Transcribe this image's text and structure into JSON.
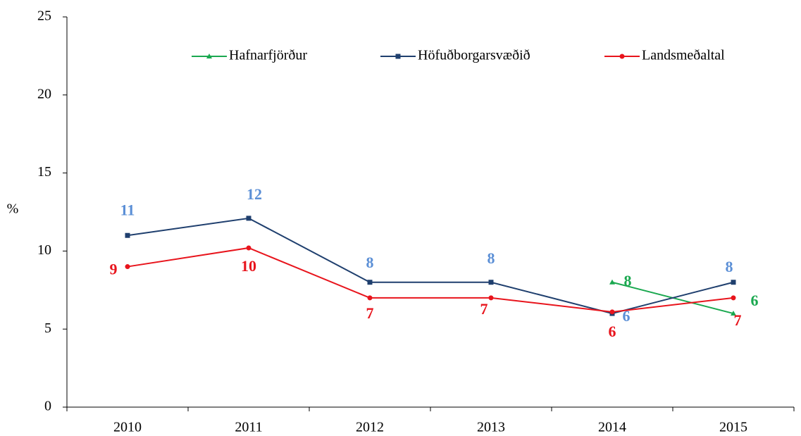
{
  "chart_data": {
    "type": "line",
    "y_label": "%",
    "categories": [
      "2010",
      "2011",
      "2012",
      "2013",
      "2014",
      "2015"
    ],
    "ylim": [
      0,
      25
    ],
    "yticks": [
      0,
      5,
      10,
      15,
      20,
      25
    ],
    "legend": "top",
    "series": [
      {
        "name": "Hafnarfjörður",
        "color": "#1aa84f",
        "label_color": "#1aa84f",
        "marker": "triangle",
        "values": [
          null,
          null,
          null,
          null,
          8,
          6
        ],
        "value_labels": [
          null,
          null,
          null,
          null,
          "8",
          "6"
        ]
      },
      {
        "name": "Höfuðborgarsvæðið",
        "color": "#1f3f6e",
        "label_color": "#5b8fd6",
        "marker": "square",
        "values": [
          11,
          12.1,
          8,
          8,
          6,
          8
        ],
        "value_labels": [
          "11",
          "12",
          "8",
          "8",
          "6",
          "8"
        ]
      },
      {
        "name": "Landsmeðaltal",
        "color": "#e8141c",
        "label_color": "#e8141c",
        "marker": "circle",
        "values": [
          9,
          10.2,
          7,
          7,
          6.1,
          7
        ],
        "value_labels": [
          "9",
          "10",
          "7",
          "7",
          "6",
          "7"
        ]
      }
    ]
  }
}
